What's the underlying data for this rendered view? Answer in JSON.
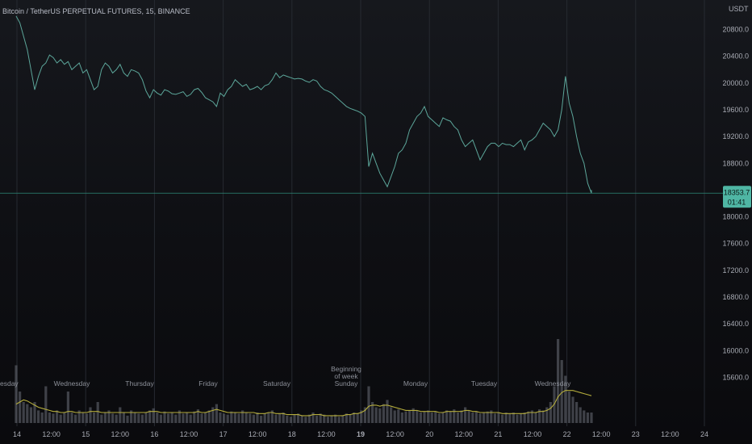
{
  "chart": {
    "title": "Bitcoin / TetherUS PERPETUAL FUTURES, 15, BINANCE",
    "unit_label": "USDT",
    "price_badge": "18353.7",
    "countdown_badge": "01:41",
    "colors": {
      "price_line": "#5ca69a",
      "volume_avg": "#b5ad3c",
      "volume_bars": "#6b7078",
      "badge_bg": "#4fb6a4",
      "grid": "#262a31",
      "current_line": "#2d8a7a"
    }
  },
  "chart_data": {
    "type": "line",
    "ylim": [
      15200,
      21200
    ],
    "y_ticks": [
      "20800.0",
      "20400.0",
      "20000.0",
      "19600.0",
      "19200.0",
      "18800.0",
      "18400.0",
      "18000.0",
      "17600.0",
      "17200.0",
      "16800.0",
      "16400.0",
      "16000.0",
      "15600.0"
    ],
    "x_ticks": [
      "14",
      "12:00",
      "15",
      "12:00",
      "16",
      "12:00",
      "17",
      "12:00",
      "18",
      "12:00",
      "19",
      "12:00",
      "20",
      "12:00",
      "21",
      "12:00",
      "22",
      "12:00",
      "23",
      "12:00",
      "24"
    ],
    "current_price": 18353.7,
    "series": [
      {
        "x": [
          0,
          1,
          2,
          3,
          4,
          5,
          6,
          7,
          8,
          9,
          10,
          11,
          12,
          13,
          14,
          15,
          16,
          17,
          18,
          19,
          20,
          21,
          22,
          23,
          24,
          25,
          26,
          27,
          28,
          29,
          30,
          31,
          32,
          33,
          34,
          35,
          36,
          37,
          38,
          39,
          40,
          41,
          42,
          43,
          44,
          45,
          46,
          47,
          48,
          49,
          50,
          51,
          52,
          53,
          54,
          55,
          56,
          57,
          58,
          59,
          60,
          61,
          62,
          63,
          64,
          65,
          66,
          67,
          68,
          69,
          70,
          71,
          72,
          73,
          74,
          75,
          76,
          77,
          78,
          79,
          80,
          81,
          82,
          83,
          84,
          85,
          86,
          87,
          88,
          89,
          90,
          91,
          92,
          93,
          94,
          95,
          96,
          97,
          98,
          99,
          100,
          101,
          102,
          103,
          104,
          105,
          106,
          107,
          108,
          109,
          110,
          111,
          112,
          113,
          114,
          115,
          116,
          117,
          118,
          119,
          120,
          121,
          122,
          123,
          124,
          125,
          126,
          127,
          128,
          129,
          130,
          131,
          132,
          133,
          134,
          135,
          136,
          137,
          138,
          139,
          140,
          141,
          142,
          143,
          144,
          145,
          146,
          147,
          148,
          149,
          150,
          151,
          152,
          153,
          154,
          155,
          156,
          157,
          158,
          159,
          160,
          161,
          162,
          163,
          164,
          165,
          166,
          167,
          168
        ],
        "values": [
          21000,
          20900,
          20700,
          20500,
          20200,
          19900,
          20100,
          20250,
          20300,
          20420,
          20380,
          20300,
          20350,
          20280,
          20320,
          20200,
          20250,
          20300,
          20150,
          20200,
          20050,
          19900,
          19950,
          20200,
          20300,
          20250,
          20150,
          20200,
          20280,
          20150,
          20100,
          20200,
          20180,
          20150,
          20050,
          19880,
          19780,
          19900,
          19850,
          19820,
          19900,
          19880,
          19840,
          19830,
          19850,
          19870,
          19800,
          19830,
          19900,
          19920,
          19860,
          19780,
          19750,
          19720,
          19650,
          19850,
          19800,
          19900,
          19950,
          20050,
          20000,
          19950,
          19980,
          19900,
          19920,
          19950,
          19900,
          19960,
          19980,
          20050,
          20150,
          20080,
          20120,
          20100,
          20080,
          20060,
          20070,
          20060,
          20030,
          20010,
          20050,
          20030,
          19950,
          19900,
          19880,
          19850,
          19800,
          19750,
          19700,
          19650,
          19620,
          19600,
          19580,
          19550,
          19500,
          18750,
          18950,
          18800,
          18650,
          18550,
          18450,
          18600,
          18750,
          18950,
          19000,
          19100,
          19300,
          19400,
          19500,
          19550,
          19650,
          19500,
          19450,
          19400,
          19350,
          19480,
          19450,
          19430,
          19350,
          19300,
          19150,
          19050,
          19100,
          19150,
          19000,
          18850,
          18950,
          19050,
          19100,
          19100,
          19050,
          19100,
          19080,
          19080,
          19050,
          19100,
          19150,
          19000,
          19120,
          19150,
          19200,
          19300,
          19400,
          19350,
          19300,
          19200,
          19300,
          19600,
          20100,
          19700,
          19500,
          19200,
          18950,
          18800,
          18500,
          18353.7,
          18400,
          18380,
          18360,
          18350,
          18355,
          18352,
          18354,
          18353,
          18353.7,
          18353.7,
          18353.7,
          18353.7,
          18353.7
        ]
      },
      {
        "name": "Volume",
        "values": [
          0.55,
          0.3,
          0.2,
          0.18,
          0.15,
          0.2,
          0.12,
          0.1,
          0.35,
          0.1,
          0.09,
          0.12,
          0.08,
          0.1,
          0.3,
          0.1,
          0.08,
          0.12,
          0.1,
          0.09,
          0.15,
          0.1,
          0.2,
          0.08,
          0.1,
          0.12,
          0.09,
          0.08,
          0.15,
          0.1,
          0.07,
          0.12,
          0.1,
          0.09,
          0.08,
          0.1,
          0.12,
          0.14,
          0.1,
          0.08,
          0.11,
          0.09,
          0.1,
          0.08,
          0.12,
          0.09,
          0.1,
          0.08,
          0.11,
          0.13,
          0.09,
          0.1,
          0.12,
          0.15,
          0.18,
          0.1,
          0.09,
          0.08,
          0.11,
          0.1,
          0.09,
          0.12,
          0.1,
          0.09,
          0.08,
          0.1,
          0.07,
          0.09,
          0.1,
          0.12,
          0.08,
          0.09,
          0.1,
          0.07,
          0.06,
          0.08,
          0.09,
          0.07,
          0.06,
          0.08,
          0.1,
          0.07,
          0.09,
          0.08,
          0.06,
          0.07,
          0.08,
          0.06,
          0.07,
          0.09,
          0.08,
          0.1,
          0.09,
          0.12,
          0.15,
          0.35,
          0.2,
          0.15,
          0.14,
          0.18,
          0.22,
          0.15,
          0.12,
          0.13,
          0.1,
          0.11,
          0.12,
          0.14,
          0.12,
          0.1,
          0.11,
          0.12,
          0.1,
          0.11,
          0.09,
          0.1,
          0.12,
          0.11,
          0.13,
          0.1,
          0.12,
          0.15,
          0.12,
          0.1,
          0.11,
          0.09,
          0.1,
          0.11,
          0.12,
          0.09,
          0.1,
          0.08,
          0.1,
          0.09,
          0.1,
          0.08,
          0.09,
          0.1,
          0.11,
          0.12,
          0.1,
          0.13,
          0.12,
          0.15,
          0.2,
          0.35,
          0.8,
          0.6,
          0.45,
          0.3,
          0.25,
          0.2,
          0.15,
          0.12,
          0.1,
          0.1,
          0.1,
          0.1,
          0.1,
          0.1,
          0.1,
          0.1,
          0.1,
          0.1,
          0.1
        ],
        "avg": [
          0.18,
          0.2,
          0.22,
          0.21,
          0.19,
          0.17,
          0.15,
          0.14,
          0.13,
          0.12,
          0.11,
          0.11,
          0.1,
          0.1,
          0.11,
          0.11,
          0.1,
          0.1,
          0.1,
          0.1,
          0.11,
          0.11,
          0.11,
          0.1,
          0.1,
          0.1,
          0.1,
          0.1,
          0.1,
          0.1,
          0.1,
          0.1,
          0.1,
          0.1,
          0.1,
          0.1,
          0.11,
          0.11,
          0.11,
          0.1,
          0.1,
          0.1,
          0.1,
          0.1,
          0.1,
          0.1,
          0.1,
          0.1,
          0.1,
          0.11,
          0.1,
          0.1,
          0.11,
          0.12,
          0.13,
          0.12,
          0.11,
          0.1,
          0.1,
          0.1,
          0.1,
          0.1,
          0.1,
          0.1,
          0.1,
          0.09,
          0.09,
          0.09,
          0.1,
          0.1,
          0.09,
          0.09,
          0.09,
          0.08,
          0.08,
          0.08,
          0.08,
          0.07,
          0.07,
          0.07,
          0.08,
          0.08,
          0.08,
          0.07,
          0.07,
          0.07,
          0.07,
          0.07,
          0.07,
          0.08,
          0.08,
          0.09,
          0.09,
          0.1,
          0.12,
          0.16,
          0.17,
          0.17,
          0.16,
          0.17,
          0.17,
          0.16,
          0.15,
          0.14,
          0.13,
          0.12,
          0.12,
          0.12,
          0.12,
          0.11,
          0.11,
          0.11,
          0.11,
          0.11,
          0.1,
          0.1,
          0.11,
          0.11,
          0.11,
          0.11,
          0.11,
          0.12,
          0.12,
          0.11,
          0.11,
          0.1,
          0.1,
          0.1,
          0.1,
          0.1,
          0.1,
          0.09,
          0.09,
          0.09,
          0.09,
          0.09,
          0.09,
          0.09,
          0.1,
          0.1,
          0.1,
          0.11,
          0.11,
          0.12,
          0.14,
          0.18,
          0.25,
          0.29,
          0.31,
          0.31,
          0.31,
          0.3,
          0.29,
          0.28,
          0.27,
          0.26,
          0.26,
          0.26,
          0.26,
          0.26,
          0.26,
          0.26,
          0.26,
          0.26,
          0.26
        ]
      }
    ],
    "annotations": [
      {
        "label": "Wednesday"
      },
      {
        "label": "Thursday"
      },
      {
        "label": "Friday"
      },
      {
        "label": "Saturday"
      },
      {
        "label": "Beginning\nof week\nSunday"
      },
      {
        "label": "Monday"
      },
      {
        "label": "Tuesday"
      },
      {
        "label": "Wednesday"
      }
    ],
    "left_edge_label": "esday"
  }
}
